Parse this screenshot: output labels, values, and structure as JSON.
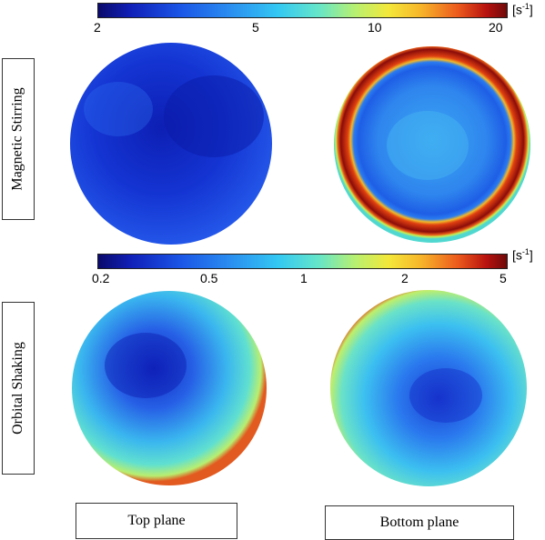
{
  "colorbar_top": {
    "ticks": [
      "2",
      "5",
      "10",
      "20"
    ],
    "unit_base": "[s",
    "unit_exp": "-1",
    "unit_close": "]"
  },
  "colorbar_bottom": {
    "ticks": [
      "0.2",
      "0.5",
      "1",
      "2",
      "5"
    ],
    "unit_base": "[s",
    "unit_exp": "-1",
    "unit_close": "]"
  },
  "row_labels": {
    "top": "Magnetic Stirring",
    "bottom": "Orbital Shaking"
  },
  "column_labels": {
    "left": "Top plane",
    "right": "Bottom plane"
  },
  "colors": {
    "deep_blue": "#1029c8",
    "mid_blue": "#2a6cf0",
    "cyan": "#40d0f0",
    "yellow_green": "#c8f050",
    "red": "#c81a10"
  }
}
